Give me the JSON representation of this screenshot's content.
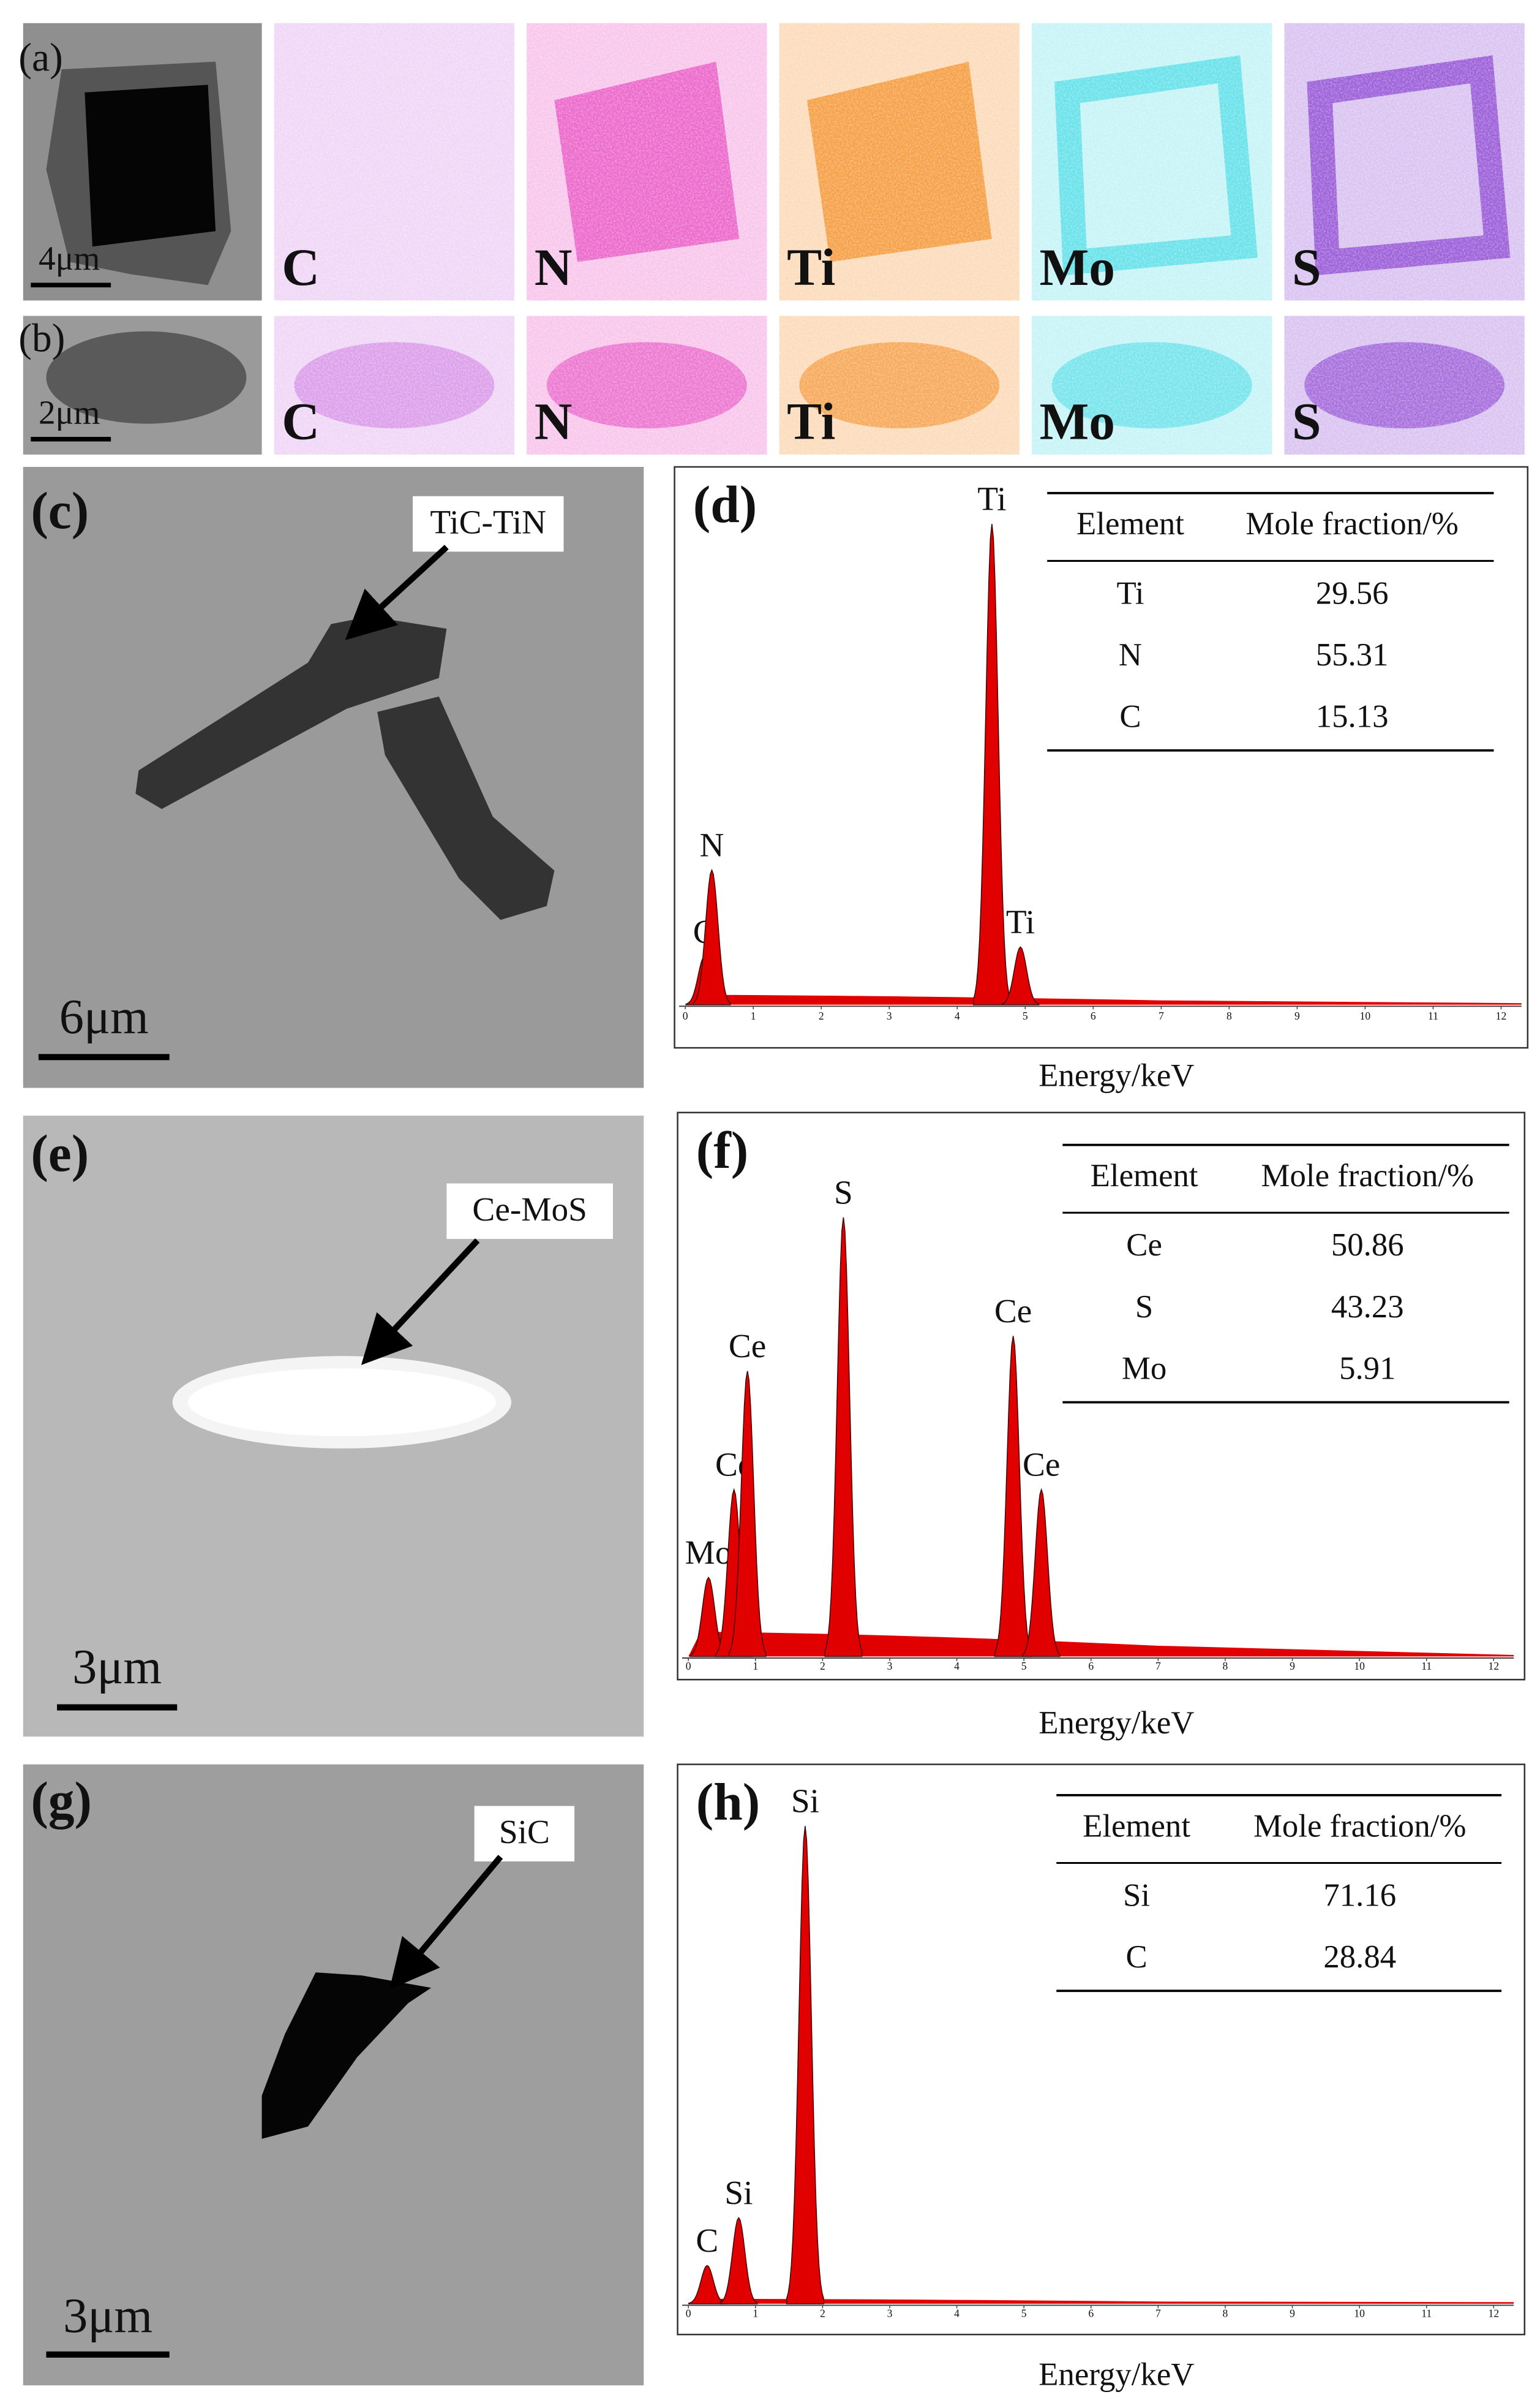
{
  "panels": {
    "a": {
      "label": "(a)",
      "scale_bar": "4μm",
      "maps": [
        {
          "element": "C",
          "color": "#d58de6"
        },
        {
          "element": "N",
          "color": "#ea5fc8"
        },
        {
          "element": "Ti",
          "color": "#f59a3c"
        },
        {
          "element": "Mo",
          "color": "#5fe0e8"
        },
        {
          "element": "S",
          "color": "#9656d6"
        }
      ]
    },
    "b": {
      "label": "(b)",
      "scale_bar": "2μm",
      "maps": [
        {
          "element": "C",
          "color": "#d58de6"
        },
        {
          "element": "N",
          "color": "#ea5fc8"
        },
        {
          "element": "Ti",
          "color": "#f59a3c"
        },
        {
          "element": "Mo",
          "color": "#5fe0e8"
        },
        {
          "element": "S",
          "color": "#9656d6"
        }
      ]
    },
    "c": {
      "label": "(c)",
      "annotation": "TiC-TiN",
      "scale_bar": "6μm"
    },
    "d": {
      "label": "(d)",
      "x_label": "Energy/keV",
      "xlim": [
        0,
        12.3
      ],
      "xticks": [
        0,
        1,
        2,
        3,
        4,
        5,
        6,
        7,
        8,
        9,
        10,
        11,
        12
      ],
      "color": "#e00000",
      "peaks": [
        {
          "label": "C",
          "x": 0.28,
          "height": 10
        },
        {
          "label": "N",
          "x": 0.39,
          "height": 28
        },
        {
          "label": "Ti",
          "x": 4.51,
          "height": 100
        },
        {
          "label": "Ti",
          "x": 4.93,
          "height": 12
        }
      ],
      "table": {
        "header": [
          "Element",
          "Mole fraction/%"
        ],
        "rows": [
          [
            "Ti",
            29.56
          ],
          [
            "N",
            55.31
          ],
          [
            "C",
            15.13
          ]
        ]
      }
    },
    "e": {
      "label": "(e)",
      "annotation": "Ce-MoS",
      "scale_bar": "3μm"
    },
    "f": {
      "label": "(f)",
      "x_label": "Energy/keV",
      "xlim": [
        0,
        12.3
      ],
      "xticks": [
        0,
        1,
        2,
        3,
        4,
        5,
        6,
        7,
        8,
        9,
        10,
        11,
        12
      ],
      "color": "#e00000",
      "peaks": [
        {
          "label": "Mo",
          "x": 0.3,
          "height": 18
        },
        {
          "label": "Ce",
          "x": 0.68,
          "height": 38
        },
        {
          "label": "Ce",
          "x": 0.88,
          "height": 65
        },
        {
          "label": "S",
          "x": 2.31,
          "height": 100
        },
        {
          "label": "Ce",
          "x": 4.84,
          "height": 73
        },
        {
          "label": "Ce",
          "x": 5.26,
          "height": 38
        }
      ],
      "table": {
        "header": [
          "Element",
          "Mole fraction/%"
        ],
        "rows": [
          [
            "Ce",
            50.86
          ],
          [
            "S",
            43.23
          ],
          [
            "Mo",
            5.91
          ]
        ]
      }
    },
    "g": {
      "label": "(g)",
      "annotation": "SiC",
      "scale_bar": "3μm"
    },
    "h": {
      "label": "(h)",
      "x_label": "Energy/keV",
      "xlim": [
        0,
        12.3
      ],
      "xticks": [
        0,
        1,
        2,
        3,
        4,
        5,
        6,
        7,
        8,
        9,
        10,
        11,
        12
      ],
      "color": "#e00000",
      "peaks": [
        {
          "label": "C",
          "x": 0.28,
          "height": 8
        },
        {
          "label": "Si",
          "x": 0.75,
          "height": 18
        },
        {
          "label": "Si",
          "x": 1.74,
          "height": 100
        }
      ],
      "table": {
        "header": [
          "Element",
          "Mole fraction/%"
        ],
        "rows": [
          [
            "Si",
            71.16
          ],
          [
            "C",
            28.84
          ]
        ]
      }
    }
  }
}
